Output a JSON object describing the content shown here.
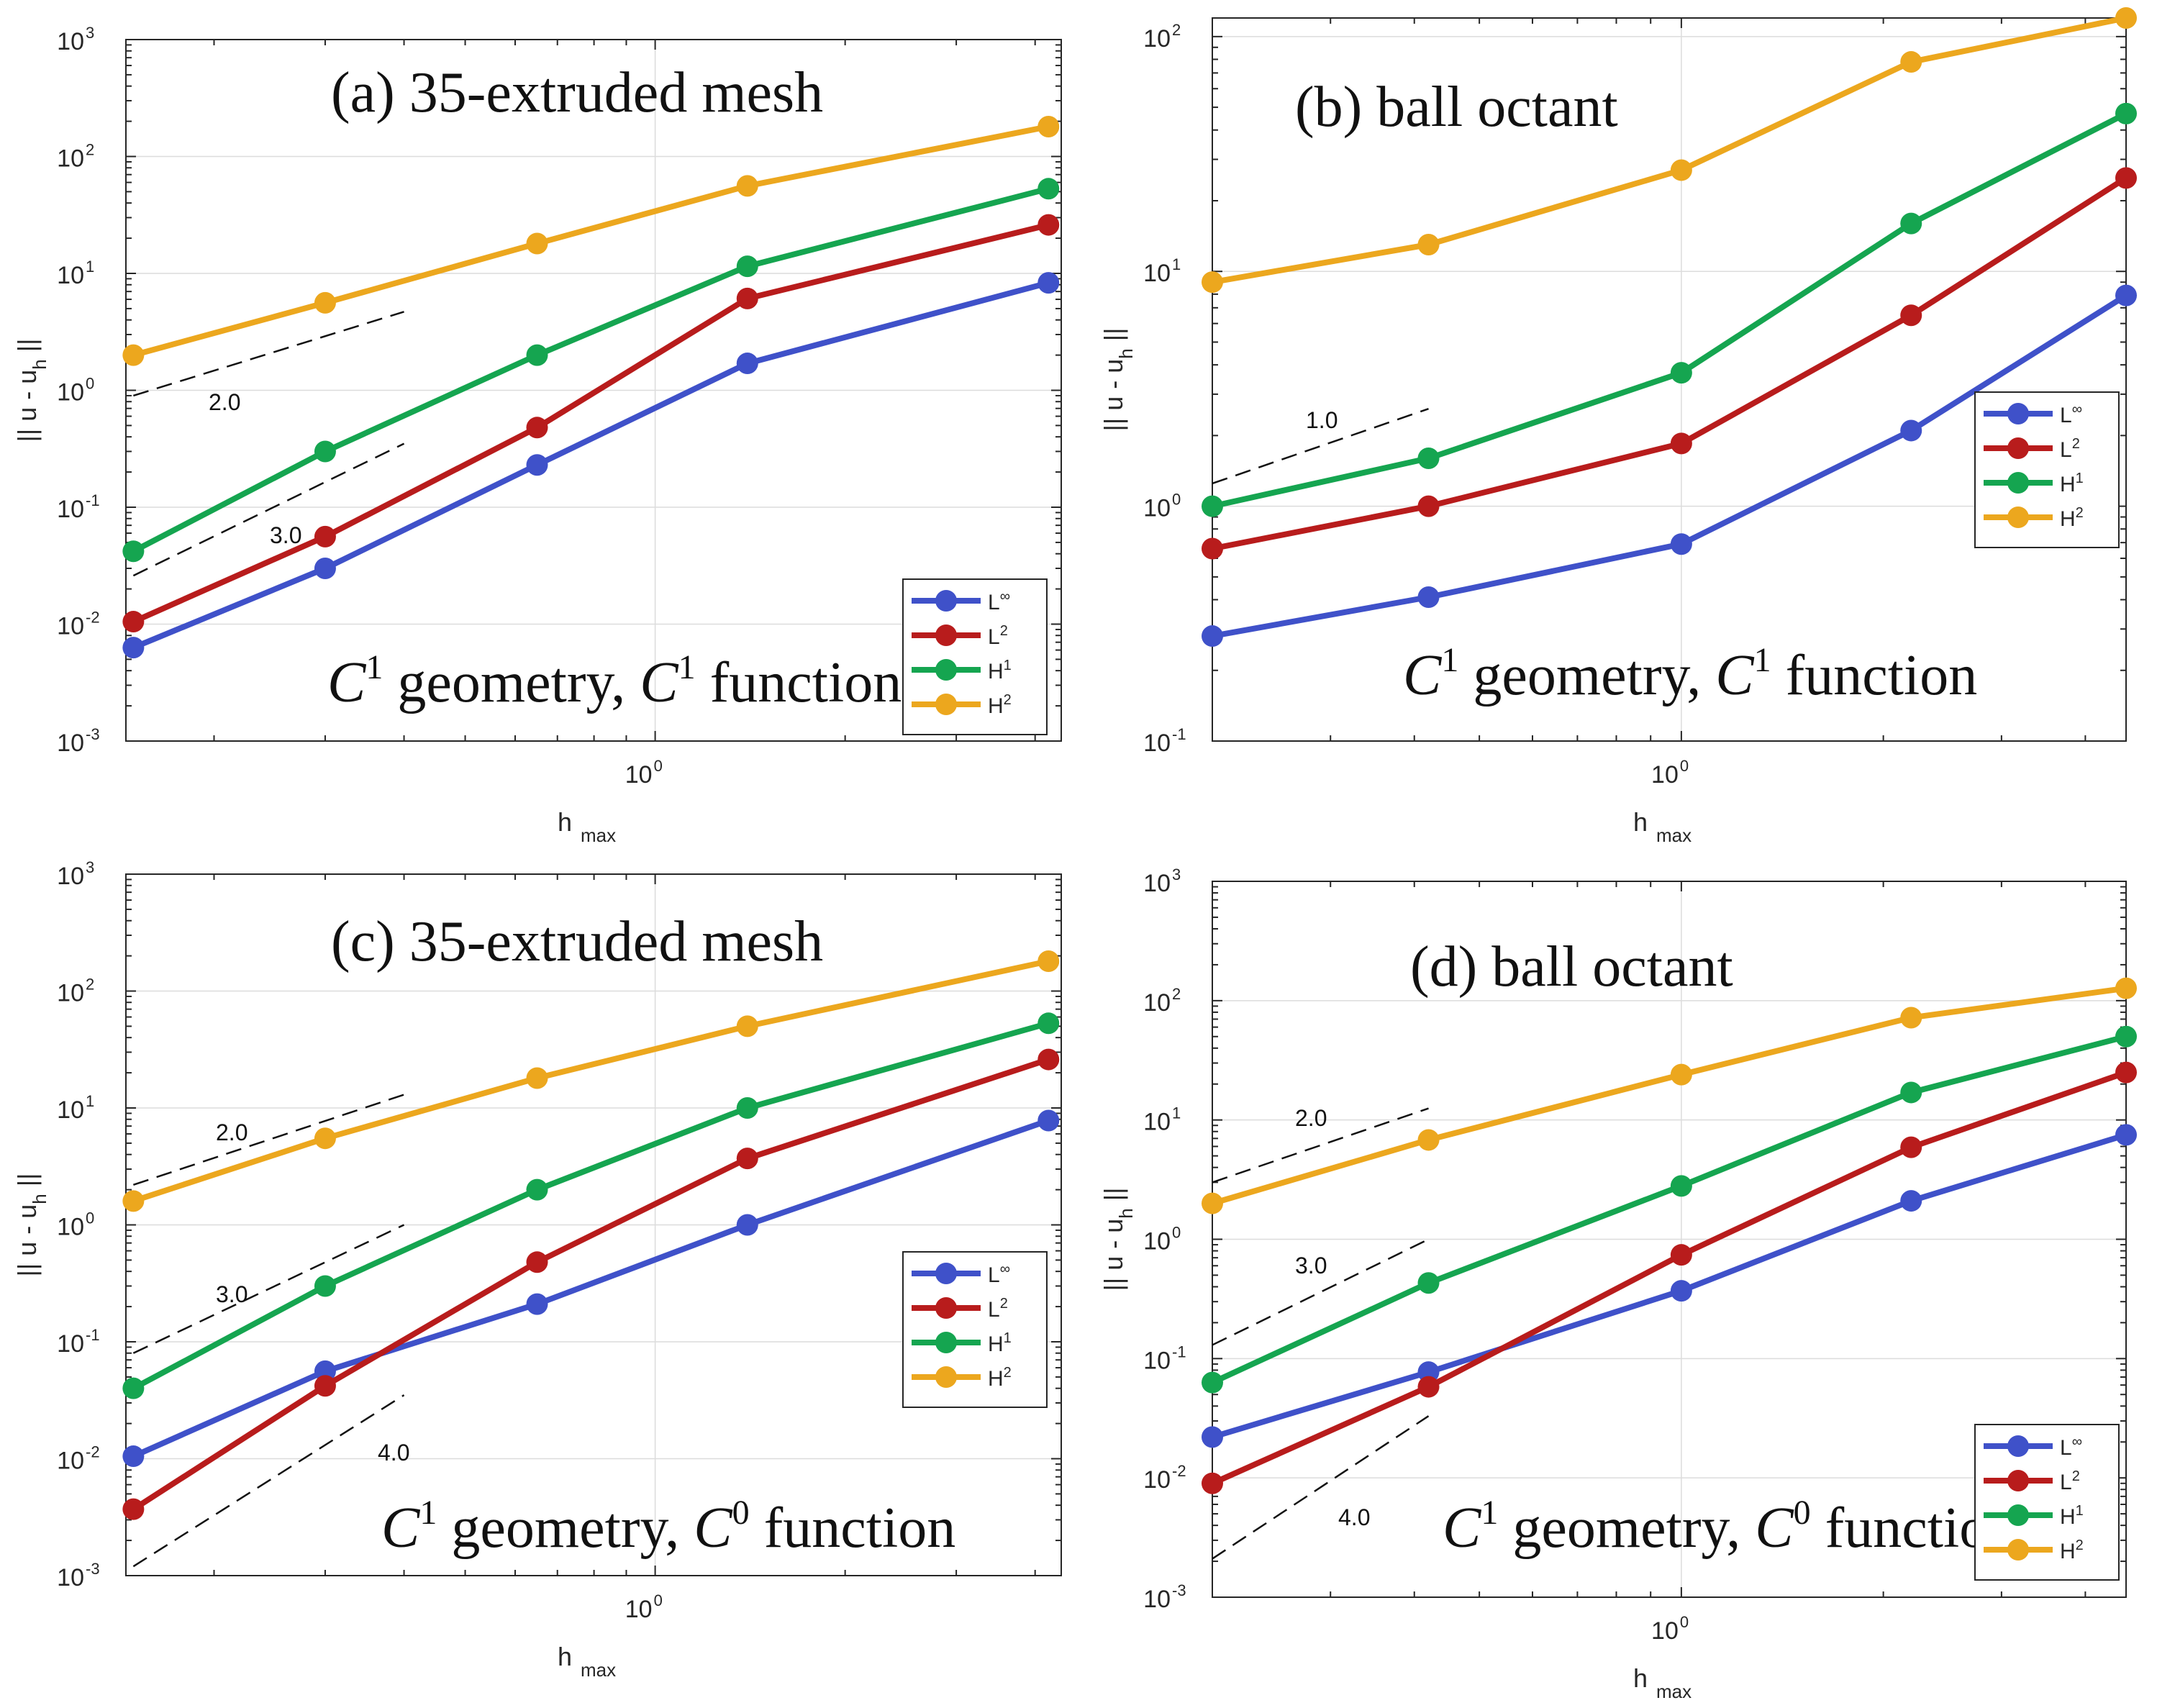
{
  "chart_data": [
    {
      "type": "line",
      "panel": "a",
      "title": "(a) 35-extruded mesh",
      "annotation": {
        "parts": [
          "C",
          "1",
          " geometry, ",
          "C",
          "1",
          " function"
        ]
      },
      "xlabel": {
        "main": "h",
        "sub": "max"
      },
      "ylabel": {
        "pre": "|| u - u",
        "sub": "h",
        "post": " ||"
      },
      "xscale": "log",
      "yscale": "log",
      "xlim": [
        0.145,
        4.4
      ],
      "ylim": [
        0.001,
        1000
      ],
      "xticks": [
        {
          "base": "10",
          "exp": "0",
          "value": 1
        }
      ],
      "yticks": [
        {
          "base": "10",
          "exp": "-3",
          "value": 0.001
        },
        {
          "base": "10",
          "exp": "-2",
          "value": 0.01
        },
        {
          "base": "10",
          "exp": "-1",
          "value": 0.1
        },
        {
          "base": "10",
          "exp": "0",
          "value": 1
        },
        {
          "base": "10",
          "exp": "1",
          "value": 10
        },
        {
          "base": "10",
          "exp": "2",
          "value": 100
        },
        {
          "base": "10",
          "exp": "3",
          "value": 1000
        }
      ],
      "grid": true,
      "x": [
        0.149,
        0.3,
        0.65,
        1.4,
        4.2
      ],
      "series": [
        {
          "name": "L∞",
          "base": "L",
          "sup": "∞",
          "color": "#3f51c9",
          "values": [
            0.0063,
            0.03,
            0.23,
            1.7,
            8.3
          ]
        },
        {
          "name": "L2",
          "base": "L",
          "sup": "2",
          "color": "#b81c1c",
          "values": [
            0.0105,
            0.056,
            0.48,
            6.1,
            26
          ]
        },
        {
          "name": "H1",
          "base": "H",
          "sup": "1",
          "color": "#15a550",
          "values": [
            0.042,
            0.3,
            2.0,
            11.5,
            53
          ]
        },
        {
          "name": "H2",
          "base": "H",
          "sup": "2",
          "color": "#eca71e",
          "values": [
            2.0,
            5.6,
            18,
            56,
            180
          ]
        }
      ],
      "slopes": [
        {
          "label": "2.0",
          "x": [
            0.149,
            0.4
          ],
          "y": [
            0.9,
            4.7
          ]
        },
        {
          "label": "3.0",
          "x": [
            0.149,
            0.4
          ],
          "y": [
            0.026,
            0.35
          ]
        }
      ],
      "legend": "bottom-right"
    },
    {
      "type": "line",
      "panel": "b",
      "title": "(b) ball octant",
      "annotation": {
        "parts": [
          "C",
          "1",
          " geometry, ",
          "C",
          "1",
          " function"
        ]
      },
      "xlabel": {
        "main": "h",
        "sub": "max"
      },
      "ylabel": {
        "pre": "|| u - u",
        "sub": "h",
        "post": " ||"
      },
      "xscale": "log",
      "yscale": "log",
      "xlim": [
        0.2,
        4.6
      ],
      "ylim": [
        0.1,
        120
      ],
      "xticks": [
        {
          "base": "10",
          "exp": "0",
          "value": 1
        }
      ],
      "yticks": [
        {
          "base": "10",
          "exp": "-1",
          "value": 0.1
        },
        {
          "base": "10",
          "exp": "0",
          "value": 1
        },
        {
          "base": "10",
          "exp": "1",
          "value": 10
        },
        {
          "base": "10",
          "exp": "2",
          "value": 100
        }
      ],
      "grid": true,
      "x": [
        0.2,
        0.42,
        1.0,
        2.2,
        4.6
      ],
      "series": [
        {
          "name": "L∞",
          "base": "L",
          "sup": "∞",
          "color": "#3f51c9",
          "values": [
            0.28,
            0.41,
            0.69,
            2.1,
            7.9
          ]
        },
        {
          "name": "L2",
          "base": "L",
          "sup": "2",
          "color": "#b81c1c",
          "values": [
            0.66,
            1.0,
            1.85,
            6.5,
            25
          ]
        },
        {
          "name": "H1",
          "base": "H",
          "sup": "1",
          "color": "#15a550",
          "values": [
            1.0,
            1.6,
            3.7,
            16,
            47
          ]
        },
        {
          "name": "H2",
          "base": "H",
          "sup": "2",
          "color": "#eca71e",
          "values": [
            9.0,
            13,
            27,
            78,
            120
          ]
        }
      ],
      "slopes": [
        {
          "label": "1.0",
          "x": [
            0.2,
            0.42
          ],
          "y": [
            1.25,
            2.6
          ]
        }
      ],
      "legend": "right"
    },
    {
      "type": "line",
      "panel": "c",
      "title": "(c) 35-extruded mesh",
      "annotation": {
        "parts": [
          "C",
          "1",
          " geometry, ",
          "C",
          "0",
          " function"
        ]
      },
      "xlabel": {
        "main": "h",
        "sub": "max"
      },
      "ylabel": {
        "pre": "|| u - u",
        "sub": "h",
        "post": " ||"
      },
      "xscale": "log",
      "yscale": "log",
      "xlim": [
        0.145,
        4.4
      ],
      "ylim": [
        0.001,
        1000
      ],
      "xticks": [
        {
          "base": "10",
          "exp": "0",
          "value": 1
        }
      ],
      "yticks": [
        {
          "base": "10",
          "exp": "-3",
          "value": 0.001
        },
        {
          "base": "10",
          "exp": "-2",
          "value": 0.01
        },
        {
          "base": "10",
          "exp": "-1",
          "value": 0.1
        },
        {
          "base": "10",
          "exp": "0",
          "value": 1
        },
        {
          "base": "10",
          "exp": "1",
          "value": 10
        },
        {
          "base": "10",
          "exp": "2",
          "value": 100
        },
        {
          "base": "10",
          "exp": "3",
          "value": 1000
        }
      ],
      "grid": true,
      "x": [
        0.149,
        0.3,
        0.65,
        1.4,
        4.2
      ],
      "series": [
        {
          "name": "L∞",
          "base": "L",
          "sup": "∞",
          "color": "#3f51c9",
          "values": [
            0.0105,
            0.056,
            0.21,
            1.0,
            7.8
          ]
        },
        {
          "name": "L2",
          "base": "L",
          "sup": "2",
          "color": "#b81c1c",
          "values": [
            0.0037,
            0.042,
            0.48,
            3.7,
            26
          ]
        },
        {
          "name": "H1",
          "base": "H",
          "sup": "1",
          "color": "#15a550",
          "values": [
            0.04,
            0.3,
            2.0,
            10,
            53
          ]
        },
        {
          "name": "H2",
          "base": "H",
          "sup": "2",
          "color": "#eca71e",
          "values": [
            1.6,
            5.5,
            18,
            50,
            180
          ]
        }
      ],
      "slopes": [
        {
          "label": "2.0",
          "x": [
            0.149,
            0.4
          ],
          "y": [
            2.2,
            13
          ]
        },
        {
          "label": "3.0",
          "x": [
            0.149,
            0.4
          ],
          "y": [
            0.08,
            1.0
          ]
        },
        {
          "label": "4.0",
          "x": [
            0.149,
            0.4
          ],
          "y": [
            0.0012,
            0.035
          ]
        }
      ],
      "legend": "right"
    },
    {
      "type": "line",
      "panel": "d",
      "title": "(d) ball octant",
      "annotation": {
        "parts": [
          "C",
          "1",
          " geometry, ",
          "C",
          "0",
          " function"
        ]
      },
      "xlabel": {
        "main": "h",
        "sub": "max"
      },
      "ylabel": {
        "pre": "|| u - u",
        "sub": "h",
        "post": " ||"
      },
      "xscale": "log",
      "yscale": "log",
      "xlim": [
        0.2,
        4.6
      ],
      "ylim": [
        0.001,
        1000
      ],
      "xticks": [
        {
          "base": "10",
          "exp": "0",
          "value": 1
        }
      ],
      "yticks": [
        {
          "base": "10",
          "exp": "-3",
          "value": 0.001
        },
        {
          "base": "10",
          "exp": "-2",
          "value": 0.01
        },
        {
          "base": "10",
          "exp": "-1",
          "value": 0.1
        },
        {
          "base": "10",
          "exp": "0",
          "value": 1
        },
        {
          "base": "10",
          "exp": "1",
          "value": 10
        },
        {
          "base": "10",
          "exp": "2",
          "value": 100
        },
        {
          "base": "10",
          "exp": "3",
          "value": 1000
        }
      ],
      "grid": true,
      "x": [
        0.2,
        0.42,
        1.0,
        2.2,
        4.6
      ],
      "series": [
        {
          "name": "L∞",
          "base": "L",
          "sup": "∞",
          "color": "#3f51c9",
          "values": [
            0.022,
            0.077,
            0.37,
            2.1,
            7.5
          ]
        },
        {
          "name": "L2",
          "base": "L",
          "sup": "2",
          "color": "#b81c1c",
          "values": [
            0.009,
            0.058,
            0.74,
            5.9,
            25
          ]
        },
        {
          "name": "H1",
          "base": "H",
          "sup": "1",
          "color": "#15a550",
          "values": [
            0.063,
            0.43,
            2.8,
            17,
            50
          ]
        },
        {
          "name": "H2",
          "base": "H",
          "sup": "2",
          "color": "#eca71e",
          "values": [
            2.0,
            6.8,
            24,
            72,
            127
          ]
        }
      ],
      "slopes": [
        {
          "label": "2.0",
          "x": [
            0.2,
            0.42
          ],
          "y": [
            3.0,
            12.5
          ]
        },
        {
          "label": "3.0",
          "x": [
            0.2,
            0.42
          ],
          "y": [
            0.13,
            1.0
          ]
        },
        {
          "label": "4.0",
          "x": [
            0.2,
            0.42
          ],
          "y": [
            0.0021,
            0.033
          ]
        }
      ],
      "legend": "bottom-right"
    }
  ]
}
